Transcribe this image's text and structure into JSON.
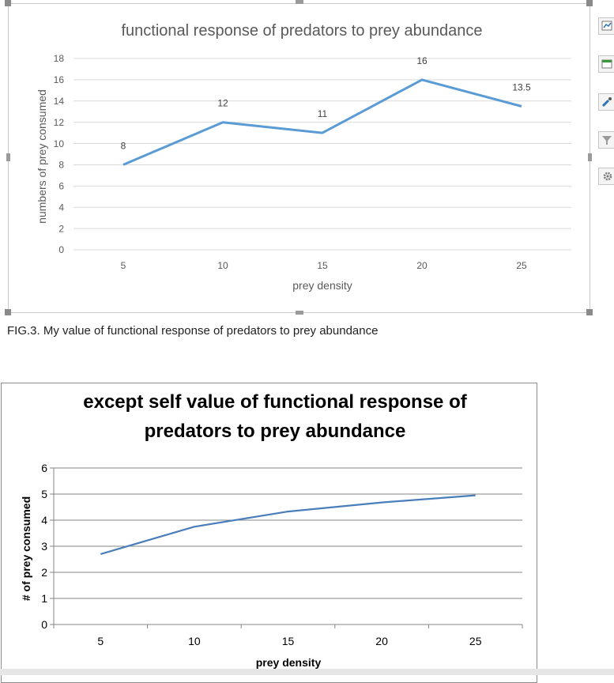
{
  "chart_data": [
    {
      "type": "line",
      "title": "functional response of predators to prey abundance",
      "xlabel": "prey density",
      "ylabel": "numbers of prey consumed",
      "categories": [
        "5",
        "10",
        "15",
        "20",
        "25"
      ],
      "series": [
        {
          "name": "prey consumed",
          "values": [
            8,
            12,
            11,
            16,
            13.5
          ],
          "labels": [
            "8",
            "12",
            "11",
            "16",
            "13.5"
          ]
        }
      ],
      "yticks": [
        "0",
        "2",
        "4",
        "6",
        "8",
        "10",
        "12",
        "14",
        "16",
        "18"
      ],
      "ylim": [
        0,
        18
      ],
      "grid": true,
      "line_color": "#5b9bd5"
    },
    {
      "type": "line",
      "title_lines": [
        "except self value of functional response of",
        "predators to prey abundance"
      ],
      "xlabel": "prey density",
      "ylabel": "# of prey consumed",
      "categories": [
        "5",
        "10",
        "15",
        "20",
        "25"
      ],
      "series": [
        {
          "name": "prey consumed",
          "values": [
            2.7,
            3.75,
            4.33,
            4.68,
            4.95
          ]
        }
      ],
      "yticks": [
        "0",
        "1",
        "2",
        "3",
        "4",
        "5",
        "6"
      ],
      "ylim": [
        0,
        6
      ],
      "grid": true,
      "line_color": "#4a7ebb"
    }
  ],
  "caption": "FIG.3. My value of functional response of predators to prey abundance",
  "toolbar": {
    "buttons": [
      "chart-elements-icon",
      "chart-styles-icon",
      "brush-icon",
      "filter-icon",
      "gear-icon"
    ],
    "accent": "#2e75b6"
  }
}
